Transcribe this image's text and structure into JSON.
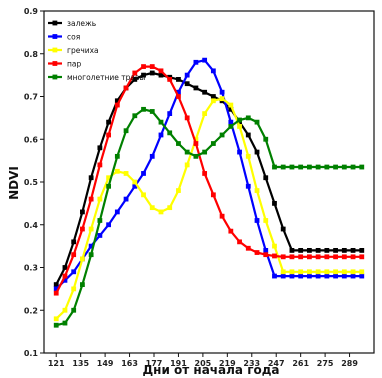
{
  "chart_data": {
    "type": "line",
    "title": "",
    "xlabel": "Дни от начала года",
    "ylabel": "NDVI",
    "xlim": [
      114,
      303
    ],
    "ylim": [
      0.1,
      0.9
    ],
    "xticks": [
      121,
      135,
      149,
      163,
      177,
      191,
      205,
      219,
      233,
      247,
      261,
      275,
      289
    ],
    "yticks": [
      0.1,
      0.2,
      0.3,
      0.4,
      0.5,
      0.6,
      0.7,
      0.8,
      0.9
    ],
    "grid": false,
    "legend_position": "top-left",
    "x": [
      121,
      126,
      131,
      136,
      141,
      146,
      151,
      156,
      161,
      166,
      171,
      176,
      181,
      186,
      191,
      196,
      201,
      206,
      211,
      216,
      221,
      226,
      231,
      236,
      241,
      246,
      251,
      256,
      261,
      266,
      271,
      276,
      281,
      286,
      291,
      296
    ],
    "series": [
      {
        "name": "залежь",
        "color": "#000000",
        "values": [
          0.26,
          0.3,
          0.36,
          0.43,
          0.51,
          0.58,
          0.64,
          0.69,
          0.72,
          0.74,
          0.75,
          0.755,
          0.75,
          0.745,
          0.74,
          0.73,
          0.72,
          0.71,
          0.7,
          0.69,
          0.67,
          0.64,
          0.61,
          0.57,
          0.51,
          0.45,
          0.39,
          0.34,
          0.34,
          0.34,
          0.34,
          0.34,
          0.34,
          0.34,
          0.34,
          0.34
        ]
      },
      {
        "name": "соя",
        "color": "#0000ff",
        "values": [
          0.25,
          0.27,
          0.29,
          0.32,
          0.35,
          0.375,
          0.4,
          0.43,
          0.46,
          0.49,
          0.52,
          0.56,
          0.61,
          0.66,
          0.71,
          0.75,
          0.78,
          0.785,
          0.76,
          0.71,
          0.64,
          0.57,
          0.49,
          0.41,
          0.34,
          0.28,
          0.28,
          0.28,
          0.28,
          0.28,
          0.28,
          0.28,
          0.28,
          0.28,
          0.28,
          0.28
        ]
      },
      {
        "name": "гречиха",
        "color": "#ffff00",
        "values": [
          0.18,
          0.2,
          0.25,
          0.32,
          0.39,
          0.46,
          0.51,
          0.525,
          0.52,
          0.5,
          0.47,
          0.44,
          0.43,
          0.44,
          0.48,
          0.54,
          0.6,
          0.66,
          0.69,
          0.695,
          0.68,
          0.63,
          0.56,
          0.48,
          0.41,
          0.35,
          0.29,
          0.29,
          0.29,
          0.29,
          0.29,
          0.29,
          0.29,
          0.29,
          0.29,
          0.29
        ]
      },
      {
        "name": "пар",
        "color": "#ff0000",
        "values": [
          0.24,
          0.28,
          0.33,
          0.39,
          0.46,
          0.54,
          0.61,
          0.68,
          0.72,
          0.755,
          0.77,
          0.77,
          0.76,
          0.74,
          0.7,
          0.65,
          0.59,
          0.52,
          0.47,
          0.42,
          0.385,
          0.36,
          0.345,
          0.335,
          0.33,
          0.327,
          0.325,
          0.325,
          0.325,
          0.325,
          0.325,
          0.325,
          0.325,
          0.325,
          0.325,
          0.325
        ]
      },
      {
        "name": "многолетние травы",
        "color": "#008000",
        "values": [
          0.165,
          0.17,
          0.2,
          0.26,
          0.33,
          0.41,
          0.49,
          0.56,
          0.62,
          0.655,
          0.67,
          0.665,
          0.64,
          0.615,
          0.59,
          0.57,
          0.56,
          0.57,
          0.59,
          0.61,
          0.63,
          0.645,
          0.65,
          0.64,
          0.6,
          0.535,
          0.535,
          0.535,
          0.535,
          0.535,
          0.535,
          0.535,
          0.535,
          0.535,
          0.535,
          0.535
        ]
      }
    ]
  }
}
